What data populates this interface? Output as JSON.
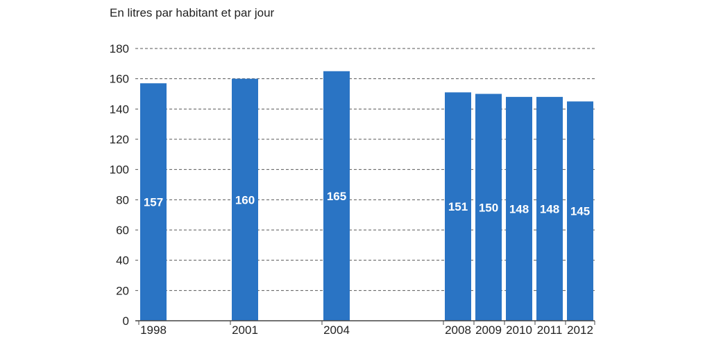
{
  "chart_data": {
    "type": "bar",
    "title": "",
    "unit_label": "En litres par habitant et par jour",
    "xlabel": "",
    "ylabel": "",
    "categories": [
      "1998",
      "2001",
      "2004",
      "2008",
      "2009",
      "2010",
      "2011",
      "2012"
    ],
    "values": [
      157,
      160,
      165,
      151,
      150,
      148,
      148,
      145
    ],
    "ylim": [
      0,
      180
    ],
    "yticks": [
      0,
      20,
      40,
      60,
      80,
      100,
      120,
      140,
      160,
      180
    ],
    "grid": true,
    "legend": "none",
    "bar_color": "#2a74c4",
    "data_label_color": "#ffffff"
  }
}
